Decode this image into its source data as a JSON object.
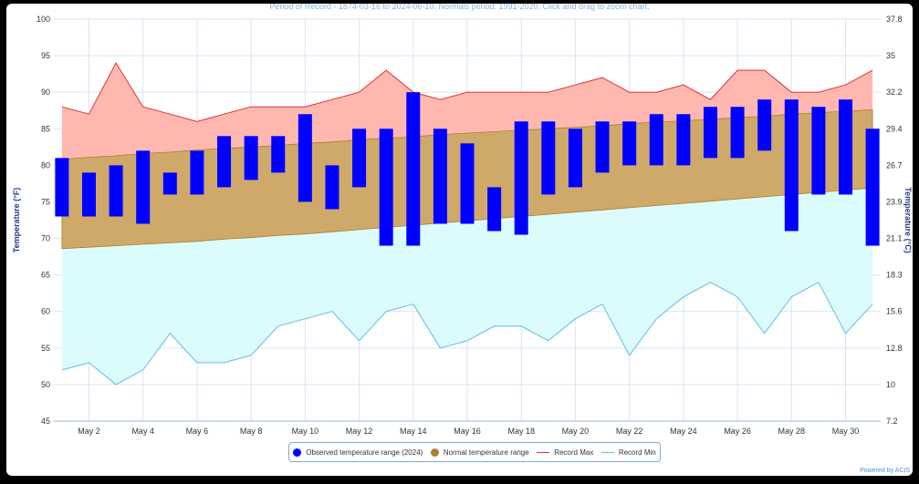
{
  "subtitle": "Period of Record - 1874-03-16 to 2024-06-10. Normals period: 1991-2020. Click and drag to zoom chart.",
  "credit": "Powered by ACIS",
  "colors": {
    "observed": "#0000ff",
    "normal_fill": "#cfa96a",
    "normal_marker": "#a8812e",
    "record_max_fill": "#ffb8b0",
    "record_max_line": "#e03030",
    "record_min_fill": "#dcfbfd",
    "record_min_line": "#5bbcea",
    "grid": "#d6e4f5"
  },
  "legend": [
    {
      "label": "Observed temperature range (2024)",
      "kind": "dot",
      "color": "#0000ff"
    },
    {
      "label": "Normal temperature range",
      "kind": "dot",
      "color": "#a8812e"
    },
    {
      "label": "Record Max",
      "kind": "line",
      "color": "#e03030"
    },
    {
      "label": "Record Min",
      "kind": "line",
      "color": "#5bbcea"
    }
  ],
  "chart_data": {
    "type": "bar",
    "xlabel": "",
    "ylabel": "Temperature (°F)",
    "ylabel_right": "Temperature (°C)",
    "ylim": [
      45,
      100
    ],
    "yticks": [
      45,
      50,
      55,
      60,
      65,
      70,
      75,
      80,
      85,
      90,
      95,
      100
    ],
    "yticks_right": [
      "7.2",
      "10",
      "12.8",
      "15.6",
      "18.3",
      "21.1",
      "23.9",
      "26.7",
      "29.4",
      "32.2",
      "35",
      "37.8"
    ],
    "xtick_labels": [
      "May 2",
      "May 4",
      "May 6",
      "May 8",
      "May 10",
      "May 12",
      "May 14",
      "May 16",
      "May 18",
      "May 20",
      "May 22",
      "May 24",
      "May 26",
      "May 28",
      "May 30"
    ],
    "xtick_days": [
      2,
      4,
      6,
      8,
      10,
      12,
      14,
      16,
      18,
      20,
      22,
      24,
      26,
      28,
      30
    ],
    "days": [
      1,
      2,
      3,
      4,
      5,
      6,
      7,
      8,
      9,
      10,
      11,
      12,
      13,
      14,
      15,
      16,
      17,
      18,
      19,
      20,
      21,
      22,
      23,
      24,
      25,
      26,
      27,
      28,
      29,
      30,
      31
    ],
    "grid": true,
    "legend_position": "bottom",
    "series": [
      {
        "name": "Observed temperature range (2024)",
        "low": [
          73,
          73,
          73,
          72,
          76,
          76,
          77,
          78,
          79,
          75,
          74,
          77,
          69,
          69,
          72,
          72,
          71,
          70.5,
          76,
          77,
          79,
          80,
          80,
          80,
          81,
          81,
          82,
          71,
          76,
          76,
          69
        ],
        "high": [
          81,
          79,
          80,
          82,
          79,
          82,
          84,
          84,
          84,
          87,
          80,
          85,
          85,
          90,
          85,
          83,
          77,
          86,
          86,
          85,
          86,
          86,
          87,
          87,
          88,
          88,
          89,
          89,
          88,
          89,
          85
        ]
      },
      {
        "name": "Normal temperature range",
        "low": [
          68.6,
          68.8,
          69.0,
          69.2,
          69.4,
          69.6,
          69.9,
          70.1,
          70.4,
          70.6,
          70.9,
          71.2,
          71.5,
          71.8,
          72.1,
          72.4,
          72.7,
          73.0,
          73.3,
          73.6,
          73.9,
          74.2,
          74.5,
          74.8,
          75.1,
          75.4,
          75.7,
          76.0,
          76.3,
          76.6,
          76.9
        ],
        "high": [
          80.8,
          81.1,
          81.3,
          81.6,
          81.8,
          82.1,
          82.3,
          82.5,
          82.7,
          83.0,
          83.2,
          83.5,
          83.7,
          83.9,
          84.2,
          84.4,
          84.6,
          84.8,
          85.0,
          85.2,
          85.4,
          85.7,
          85.9,
          86.1,
          86.3,
          86.5,
          86.7,
          87.0,
          87.2,
          87.4,
          87.6
        ]
      },
      {
        "name": "Record Max",
        "values": [
          88,
          87,
          94,
          88,
          87,
          86,
          87,
          88,
          88,
          88,
          89,
          90,
          93,
          90,
          89,
          90,
          90,
          90,
          90,
          91,
          92,
          90,
          90,
          91,
          89,
          93,
          93,
          90,
          90,
          91,
          93
        ]
      },
      {
        "name": "Record Min",
        "values": [
          52,
          53,
          50,
          52,
          57,
          53,
          53,
          54,
          58,
          59,
          60,
          56,
          60,
          61,
          55,
          56,
          58,
          58,
          56,
          59,
          61,
          54,
          59,
          62,
          64,
          62,
          57,
          62,
          64,
          57,
          61
        ]
      }
    ]
  }
}
